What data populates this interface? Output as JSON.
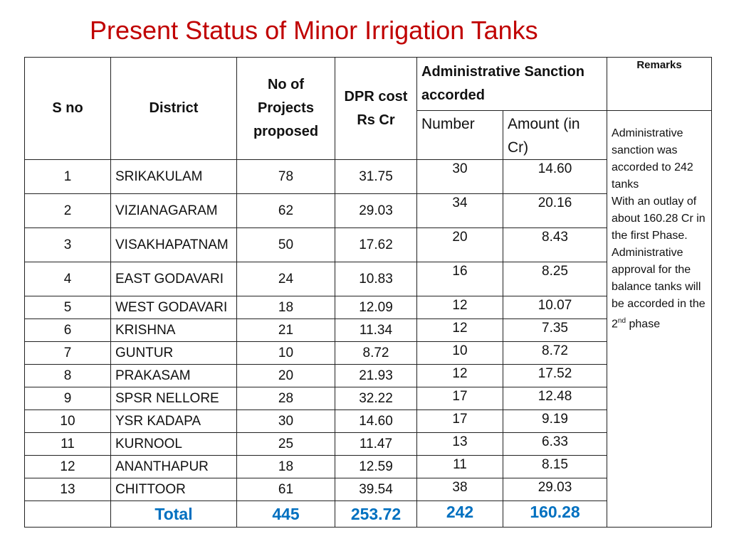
{
  "title": "Present Status of Minor Irrigation Tanks",
  "table": {
    "headers": {
      "s_no": "S no",
      "district": "District",
      "projects": "No of Projects proposed",
      "dpr": "DPR cost Rs Cr",
      "sanction": "Administrative Sanction accorded",
      "number": "Number",
      "amount": "Amount (in Cr)",
      "remarks": "Remarks"
    },
    "rows": [
      [
        "1",
        "SRIKAKULAM",
        "78",
        "31.75",
        "30",
        "14.60"
      ],
      [
        "2",
        "VIZIANAGARAM",
        "62",
        "29.03",
        "34",
        "20.16"
      ],
      [
        "3",
        "VISAKHAPATNAM",
        "50",
        "17.62",
        "20",
        "8.43"
      ],
      [
        "4",
        "EAST GODAVARI",
        "24",
        "10.83",
        "16",
        "8.25"
      ],
      [
        "5",
        "WEST GODAVARI",
        "18",
        "12.09",
        "12",
        "10.07"
      ],
      [
        "6",
        "KRISHNA",
        "21",
        "11.34",
        "12",
        "7.35"
      ],
      [
        "7",
        "GUNTUR",
        "10",
        "8.72",
        "10",
        "8.72"
      ],
      [
        "8",
        "PRAKASAM",
        "20",
        "21.93",
        "12",
        "17.52"
      ],
      [
        "9",
        "SPSR NELLORE",
        "28",
        "32.22",
        "17",
        "12.48"
      ],
      [
        "10",
        "YSR KADAPA",
        "30",
        "14.60",
        "17",
        "9.19"
      ],
      [
        "11",
        "KURNOOL",
        "25",
        "11.47",
        "13",
        "6.33"
      ],
      [
        "12",
        "ANANTHAPUR",
        "18",
        "12.59",
        "11",
        "8.15"
      ],
      [
        "13",
        "CHITTOOR",
        "61",
        "39.54",
        "38",
        "29.03"
      ]
    ],
    "total": {
      "label": "Total",
      "projects": "445",
      "dpr": "253.72",
      "number": "242",
      "amount": "160.28"
    },
    "remarks": {
      "text_1": "Administrative sanction was accorded to 242 tanks",
      "text_2": "With an outlay of about 160.28 Cr in the first Phase.",
      "text_3": "Administrative approval for the balance tanks will be accorded in the 2",
      "superscript": "nd",
      "text_4": "phase"
    }
  }
}
